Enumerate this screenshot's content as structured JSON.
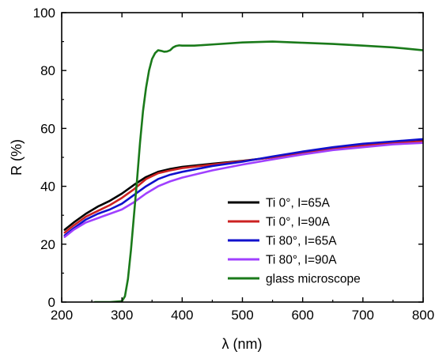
{
  "chart_data": {
    "type": "line",
    "title": "",
    "xlabel": "λ (nm)",
    "ylabel": "R (%)",
    "xlim": [
      200,
      800
    ],
    "ylim": [
      0,
      100
    ],
    "xticks": [
      200,
      300,
      400,
      500,
      600,
      700,
      800
    ],
    "yticks": [
      0,
      20,
      40,
      60,
      80,
      100
    ],
    "grid": false,
    "legend_position": "bottom-right",
    "series": [
      {
        "name": "Ti 0°, I=65A",
        "color": "#000000",
        "x": [
          205,
          220,
          240,
          260,
          280,
          300,
          320,
          340,
          360,
          380,
          400,
          450,
          500,
          550,
          600,
          650,
          700,
          750,
          800
        ],
        "y": [
          25,
          27.5,
          30.5,
          33,
          35,
          37.5,
          40.5,
          43.2,
          45,
          46,
          46.7,
          47.8,
          48.8,
          50,
          51.5,
          53,
          54,
          55,
          55.8
        ]
      },
      {
        "name": "Ti 0°, I=90A",
        "color": "#cc2222",
        "x": [
          205,
          220,
          240,
          260,
          280,
          300,
          320,
          340,
          360,
          380,
          400,
          450,
          500,
          550,
          600,
          650,
          700,
          750,
          800
        ],
        "y": [
          24,
          26.5,
          29.5,
          31.5,
          33.5,
          36,
          39,
          42.5,
          44.5,
          45.5,
          46.3,
          47.5,
          48.7,
          50,
          51.5,
          53,
          54,
          55,
          55.5
        ]
      },
      {
        "name": "Ti 80°, I=65A",
        "color": "#1010cc",
        "x": [
          205,
          220,
          240,
          260,
          280,
          300,
          320,
          340,
          360,
          380,
          400,
          450,
          500,
          550,
          600,
          650,
          700,
          750,
          800
        ],
        "y": [
          23,
          25.5,
          28.5,
          30.5,
          32,
          34,
          37,
          40,
          42.5,
          44,
          45,
          47,
          48.5,
          50.3,
          52,
          53.5,
          54.7,
          55.5,
          56.3
        ]
      },
      {
        "name": "Ti 80°, I=90A",
        "color": "#a040ff",
        "x": [
          205,
          220,
          240,
          260,
          280,
          300,
          320,
          340,
          360,
          380,
          400,
          450,
          500,
          550,
          600,
          650,
          700,
          750,
          800
        ],
        "y": [
          22.5,
          25,
          27.5,
          29,
          30.5,
          32,
          34.5,
          37.5,
          40,
          41.7,
          43,
          45.5,
          47.5,
          49.3,
          51,
          52.5,
          53.5,
          54.5,
          55
        ]
      },
      {
        "name": "glass microscope",
        "color": "#1a7a1a",
        "x": [
          255,
          280,
          300,
          305,
          310,
          315,
          320,
          325,
          330,
          335,
          340,
          345,
          350,
          355,
          360,
          365,
          370,
          375,
          380,
          385,
          390,
          395,
          400,
          420,
          450,
          500,
          550,
          600,
          650,
          700,
          750,
          800
        ],
        "y": [
          0,
          0,
          0.3,
          2,
          8,
          18,
          30,
          42,
          55,
          66,
          74,
          80,
          84,
          86,
          87,
          86.8,
          86.5,
          86.6,
          87,
          88,
          88.5,
          88.7,
          88.6,
          88.6,
          89,
          89.7,
          90,
          89.6,
          89.2,
          88.6,
          88,
          87
        ]
      }
    ]
  }
}
